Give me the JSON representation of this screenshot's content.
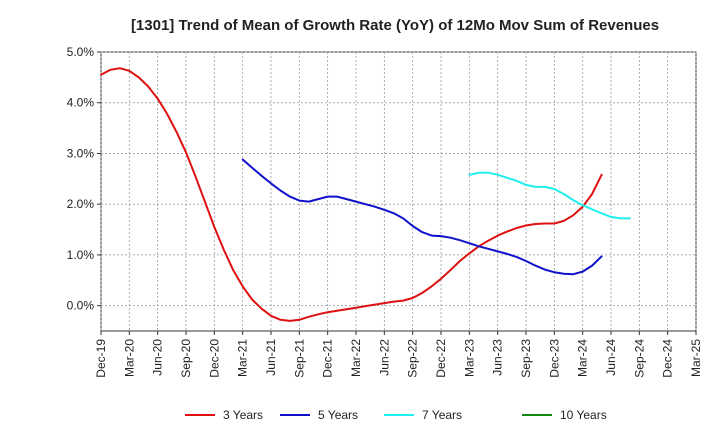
{
  "chart_data": {
    "type": "line",
    "title": "[1301]  Trend of Mean of Growth Rate (YoY) of 12Mo Mov Sum of Revenues",
    "xlabel": "",
    "ylabel": "",
    "ylim": [
      -0.5,
      5.0
    ],
    "y_ticks": [
      0.0,
      1.0,
      2.0,
      3.0,
      4.0,
      5.0
    ],
    "y_tick_labels": [
      "0.0%",
      "1.0%",
      "2.0%",
      "3.0%",
      "4.0%",
      "5.0%"
    ],
    "x_tick_labels": [
      "Dec-19",
      "Mar-20",
      "Jun-20",
      "Sep-20",
      "Dec-20",
      "Mar-21",
      "Jun-21",
      "Sep-21",
      "Dec-21",
      "Mar-22",
      "Jun-22",
      "Sep-22",
      "Dec-22",
      "Mar-23",
      "Jun-23",
      "Sep-23",
      "Dec-23",
      "Mar-24",
      "Jun-24",
      "Sep-24",
      "Dec-24",
      "Mar-25"
    ],
    "grid": true,
    "legend_position": "bottom",
    "series": [
      {
        "name": "3 Years",
        "color": "#dd1111",
        "start_index": 0,
        "values": [
          4.55,
          4.65,
          4.68,
          4.63,
          4.5,
          4.32,
          4.08,
          3.78,
          3.42,
          3.02,
          2.55,
          2.05,
          1.55,
          1.1,
          0.7,
          0.38,
          0.12,
          -0.06,
          -0.2,
          -0.28,
          -0.3,
          -0.28,
          -0.22,
          -0.17,
          -0.13,
          -0.1,
          -0.07,
          -0.04,
          -0.01,
          0.02,
          0.05,
          0.08,
          0.1,
          0.15,
          0.25,
          0.38,
          0.53,
          0.7,
          0.88,
          1.03,
          1.17,
          1.28,
          1.38,
          1.46,
          1.53,
          1.58,
          1.61,
          1.62,
          1.62,
          1.67,
          1.78,
          1.95,
          2.2,
          2.58
        ]
      },
      {
        "name": "5 Years",
        "color": "#1111cc",
        "start_index": 15,
        "values": [
          2.88,
          2.72,
          2.56,
          2.41,
          2.27,
          2.15,
          2.07,
          2.05,
          2.1,
          2.15,
          2.15,
          2.1,
          2.05,
          2.0,
          1.95,
          1.89,
          1.82,
          1.72,
          1.57,
          1.45,
          1.38,
          1.37,
          1.34,
          1.29,
          1.23,
          1.17,
          1.12,
          1.07,
          1.02,
          0.96,
          0.88,
          0.79,
          0.71,
          0.66,
          0.63,
          0.62,
          0.67,
          0.79,
          0.97
        ]
      },
      {
        "name": "7 Years",
        "color": "#22eeee",
        "start_index": 39,
        "values": [
          2.58,
          2.62,
          2.62,
          2.58,
          2.52,
          2.46,
          2.38,
          2.34,
          2.34,
          2.3,
          2.2,
          2.08,
          1.98,
          1.9,
          1.82,
          1.75,
          1.72,
          1.72
        ]
      },
      {
        "name": "10 Years",
        "color": "#118811",
        "start_index": 0,
        "values": []
      }
    ]
  }
}
